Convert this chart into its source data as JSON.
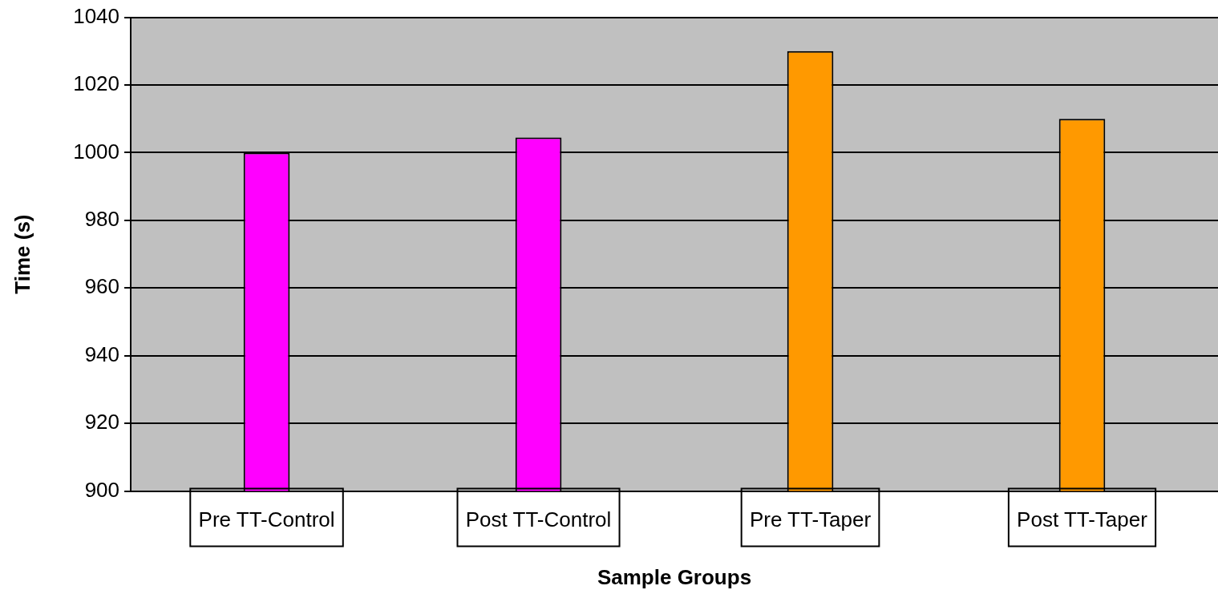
{
  "chart_data": {
    "type": "bar",
    "xlabel": "Sample Groups",
    "ylabel": "Time (s)",
    "categories": [
      "Pre TT-Control",
      "Post TT-Control",
      "Pre TT-Taper",
      "Post TT-Taper"
    ],
    "values": [
      1000,
      1004.5,
      1030,
      1010
    ],
    "colors": [
      "#ff00ff",
      "#ff00ff",
      "#ff9900",
      "#ff9900"
    ],
    "ylim": [
      900,
      1040
    ],
    "yticks": [
      900,
      920,
      940,
      960,
      980,
      1000,
      1020,
      1040
    ],
    "grid": "y",
    "legend": false
  }
}
